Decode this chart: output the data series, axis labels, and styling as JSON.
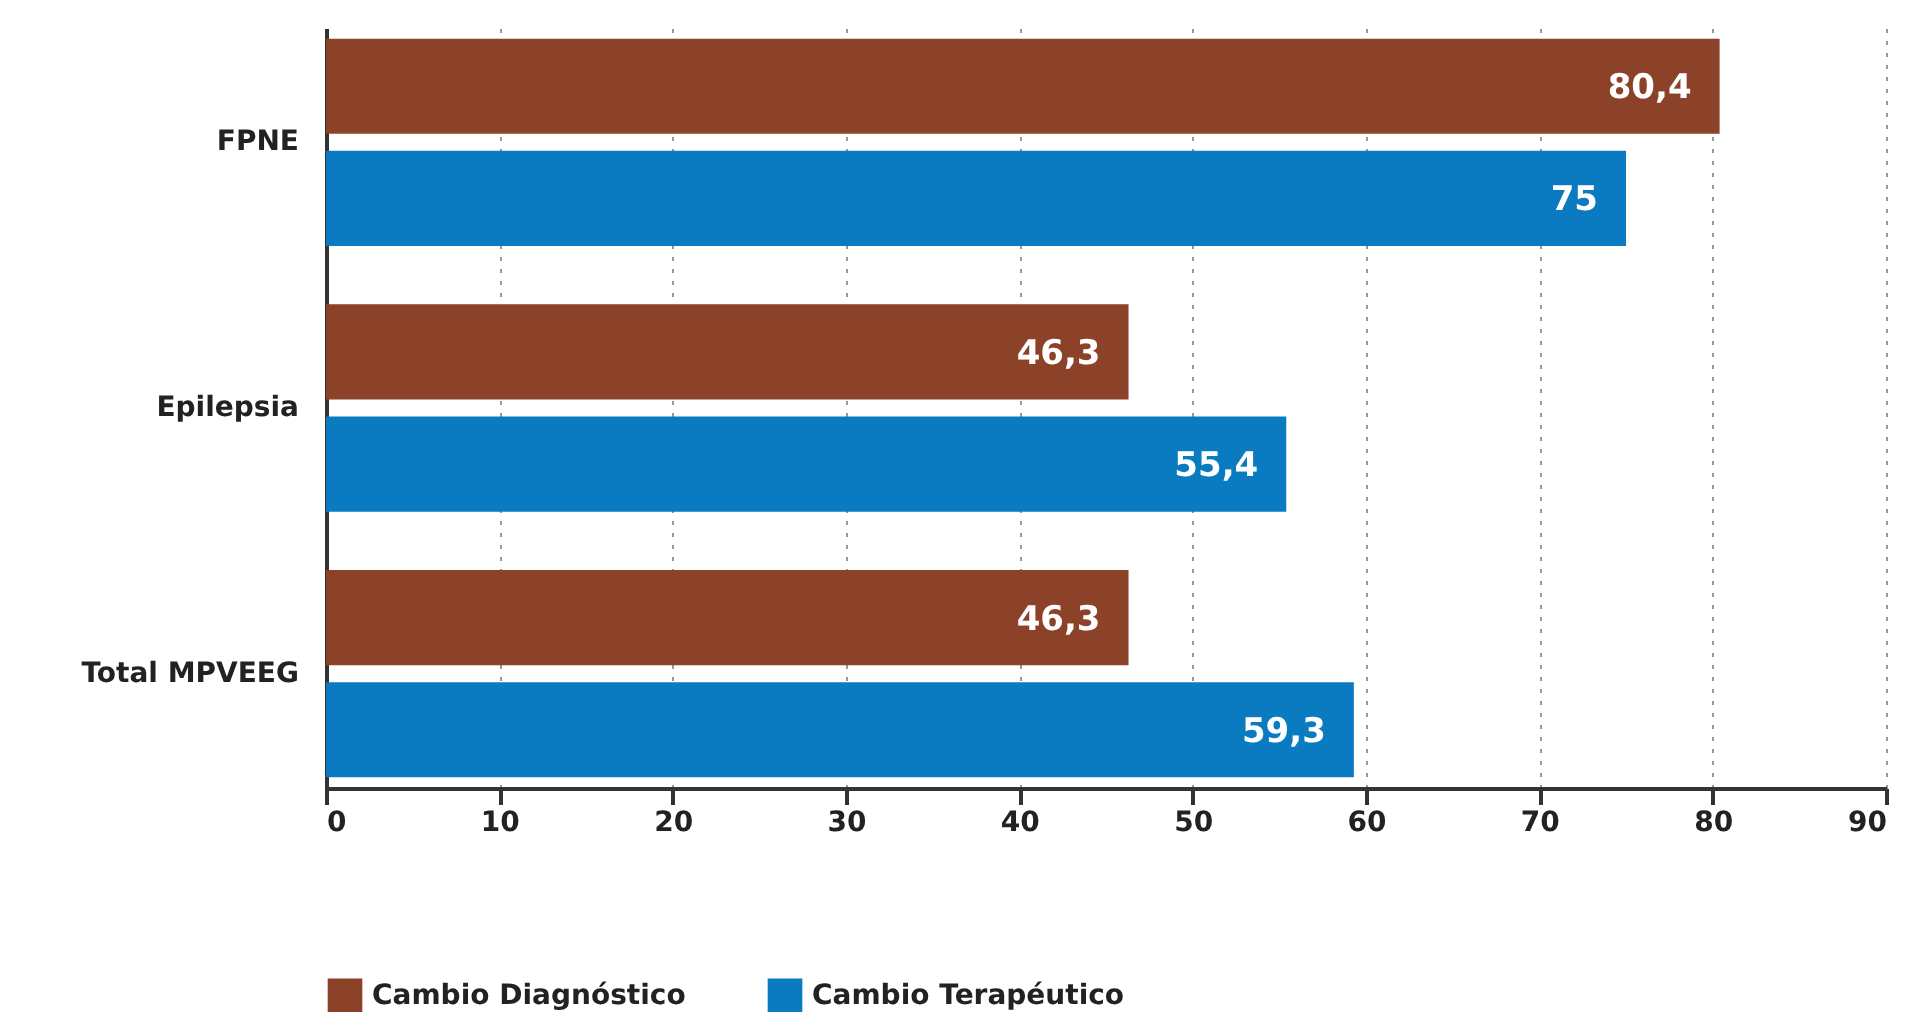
{
  "chart_data": {
    "type": "bar",
    "orientation": "horizontal",
    "categories": [
      "FPNE",
      "Epilepsia",
      "Total MPVEEG"
    ],
    "series": [
      {
        "name": "Cambio Diagnóstico",
        "color": "#8c4129",
        "values": [
          80.4,
          46.3,
          46.3
        ],
        "value_labels": [
          "80,4",
          "46,3",
          "46,3"
        ]
      },
      {
        "name": "Cambio Terapéutico",
        "color": "#0b7bc1",
        "values": [
          75,
          55.4,
          59.3
        ],
        "value_labels": [
          "75",
          "55,4",
          "59,3"
        ]
      }
    ],
    "xlim": [
      0,
      90
    ],
    "xticks": [
      0,
      10,
      20,
      30,
      40,
      50,
      60,
      70,
      80,
      90
    ],
    "grid": "x",
    "legend": "bottom"
  }
}
